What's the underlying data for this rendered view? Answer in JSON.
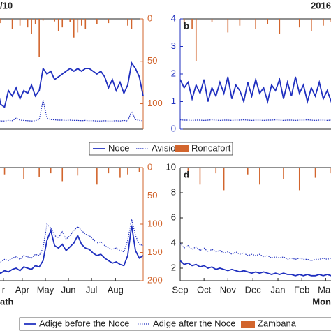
{
  "chart_data": [
    {
      "type": "line",
      "title": "/10",
      "xlim": [
        0,
        39
      ],
      "ylim": [
        0,
        4
      ],
      "y2lim": [
        0,
        130
      ],
      "y2_inverted": true,
      "y2ticks": [
        0,
        50,
        100
      ],
      "y2_color": "#d2652d",
      "series": [
        {
          "name": "Noce",
          "color": "#1f2fbf",
          "line_style": "solid",
          "values": [
            1.9,
            1.6,
            0.9,
            0.8,
            1.4,
            1.2,
            1.5,
            1.1,
            1.4,
            1.3,
            1.6,
            1.2,
            1.4,
            2.2,
            2.0,
            2.1,
            1.8,
            1.9,
            2.0,
            2.1,
            2.2,
            2.1,
            2.2,
            2.1,
            2.2,
            2.2,
            2.1,
            2.0,
            2.1,
            1.9,
            1.5,
            1.8,
            1.4,
            1.7,
            1.3,
            1.6,
            2.4,
            2.2,
            1.9,
            1.2
          ]
        },
        {
          "name": "Avisio",
          "color": "#1f2fbf",
          "line_style": "dotted",
          "values": [
            0.33,
            0.32,
            0.3,
            0.3,
            0.32,
            0.31,
            0.4,
            0.33,
            0.32,
            0.31,
            0.3,
            0.31,
            0.35,
            1.05,
            0.4,
            0.35,
            0.34,
            0.33,
            0.33,
            0.32,
            0.33,
            0.32,
            0.32,
            0.31,
            0.32,
            0.31,
            0.31,
            0.3,
            0.3,
            0.31,
            0.3,
            0.3,
            0.31,
            0.3,
            0.32,
            0.3,
            0.65,
            0.35,
            0.32,
            0.31
          ]
        },
        {
          "name": "Roncafort",
          "color": "#d2652d",
          "type": "bar",
          "axis": "y2",
          "values": [
            0,
            0,
            5,
            0,
            0,
            12,
            0,
            8,
            0,
            10,
            18,
            6,
            45,
            2,
            0,
            0,
            3,
            14,
            10,
            0,
            4,
            22,
            16,
            8,
            12,
            0,
            0,
            6,
            0,
            0,
            5,
            0,
            0,
            0,
            0,
            8,
            12,
            0,
            0,
            0
          ]
        }
      ]
    },
    {
      "type": "line",
      "title": "2016",
      "panel_label": "b",
      "xlim": [
        0,
        39
      ],
      "ylim": [
        0,
        4
      ],
      "yticks": [
        0,
        1,
        2,
        3,
        4
      ],
      "y_color": "#1f2fbf",
      "y2lim": [
        0,
        130
      ],
      "y2_inverted": true,
      "series": [
        {
          "name": "Noce",
          "color": "#1f2fbf",
          "line_style": "solid",
          "values": [
            1.8,
            1.5,
            1.7,
            1.1,
            1.6,
            1.3,
            1.8,
            1.0,
            1.5,
            1.2,
            1.7,
            1.3,
            1.9,
            1.1,
            1.6,
            1.4,
            1.0,
            1.7,
            1.2,
            1.8,
            1.3,
            1.5,
            1.0,
            1.6,
            1.4,
            1.8,
            1.1,
            1.7,
            1.2,
            1.9,
            1.3,
            1.6,
            1.0,
            1.5,
            1.2,
            1.7,
            1.1,
            1.4,
            1.0,
            1.3
          ]
        },
        {
          "name": "Avisio",
          "color": "#1f2fbf",
          "line_style": "dotted",
          "values": [
            0.34,
            0.33,
            0.33,
            0.32,
            0.33,
            0.33,
            0.32,
            0.33,
            0.34,
            0.33,
            0.32,
            0.33,
            0.33,
            0.32,
            0.33,
            0.33,
            0.34,
            0.33,
            0.32,
            0.33,
            0.33,
            0.32,
            0.33,
            0.33,
            0.34,
            0.33,
            0.32,
            0.33,
            0.33,
            0.32,
            0.33,
            0.33,
            0.34,
            0.33,
            0.32,
            0.33,
            0.33,
            0.32,
            0.33,
            0.33
          ]
        },
        {
          "name": "Roncafort",
          "color": "#d2652d",
          "type": "bar",
          "axis": "y2",
          "values": [
            0,
            6,
            0,
            12,
            50,
            0,
            0,
            0,
            4,
            0,
            0,
            0,
            16,
            0,
            0,
            8,
            0,
            0,
            0,
            12,
            0,
            0,
            6,
            0,
            0,
            18,
            0,
            0,
            0,
            0,
            10,
            0,
            0,
            14,
            0,
            0,
            8,
            0,
            4,
            0
          ]
        }
      ]
    },
    {
      "type": "line",
      "x_label": "ath",
      "xlim": [
        0,
        39
      ],
      "ylim": [
        1,
        10
      ],
      "y2lim": [
        0,
        200
      ],
      "y2_inverted": true,
      "y2ticks": [
        0,
        50,
        100,
        150,
        200
      ],
      "y2_color": "#d2652d",
      "xticks": [
        {
          "value": 2.7,
          "label": "r"
        },
        {
          "value": 7.6,
          "label": "Apr"
        },
        {
          "value": 13.6,
          "label": "May"
        },
        {
          "value": 19.6,
          "label": "Jun"
        },
        {
          "value": 25.6,
          "label": "Jul"
        },
        {
          "value": 31.8,
          "label": "Aug"
        }
      ],
      "series": [
        {
          "name": "Adige before the Noce",
          "color": "#1f2fbf",
          "line_style": "solid",
          "values": [
            1.5,
            1.7,
            1.6,
            1.8,
            1.7,
            1.9,
            2.0,
            1.8,
            2.1,
            2.0,
            1.9,
            2.2,
            2.1,
            2.6,
            4.2,
            5.0,
            3.8,
            3.6,
            3.9,
            3.4,
            3.7,
            4.0,
            4.6,
            3.9,
            3.6,
            3.5,
            3.2,
            3.0,
            3.1,
            2.8,
            2.6,
            2.4,
            2.5,
            2.3,
            2.2,
            3.0,
            5.4,
            3.4,
            2.8,
            3.0
          ]
        },
        {
          "name": "Adige after the Noce",
          "color": "#1f2fbf",
          "line_style": "dotted",
          "values": [
            2.4,
            2.6,
            2.5,
            2.7,
            2.6,
            2.8,
            2.9,
            2.7,
            3.0,
            2.9,
            2.8,
            3.1,
            3.0,
            3.6,
            5.5,
            5.2,
            4.6,
            4.4,
            4.9,
            4.3,
            4.6,
            5.0,
            5.3,
            5.0,
            4.7,
            4.6,
            4.3,
            4.0,
            4.1,
            3.8,
            3.6,
            3.5,
            3.6,
            3.4,
            3.3,
            4.2,
            5.9,
            4.6,
            3.9,
            3.8
          ]
        },
        {
          "name": "Zambana",
          "color": "#d2652d",
          "type": "bar",
          "axis": "y2",
          "values": [
            0,
            0,
            0,
            12,
            0,
            0,
            0,
            0,
            20,
            0,
            0,
            0,
            16,
            0,
            0,
            10,
            0,
            0,
            24,
            0,
            0,
            0,
            14,
            0,
            0,
            0,
            0,
            30,
            0,
            0,
            10,
            0,
            0,
            18,
            0,
            12,
            0,
            0,
            8,
            0
          ]
        }
      ]
    },
    {
      "type": "line",
      "panel_label": "d",
      "x_label": "Mon",
      "xlim": [
        0,
        39
      ],
      "ylim": [
        1,
        10
      ],
      "yticks": [
        2,
        4,
        6,
        8,
        10
      ],
      "y_color": "#222222",
      "y2lim": [
        0,
        200
      ],
      "y2_inverted": true,
      "xticks": [
        {
          "value": 0,
          "label": "Sep"
        },
        {
          "value": 6.0,
          "label": "Oct"
        },
        {
          "value": 12.0,
          "label": "Nov"
        },
        {
          "value": 18.3,
          "label": "Dec"
        },
        {
          "value": 24.6,
          "label": "Jan"
        },
        {
          "value": 30.6,
          "label": "Feb"
        },
        {
          "value": 36.6,
          "label": "Mar"
        }
      ],
      "series": [
        {
          "name": "Adige before the Noce",
          "color": "#1f2fbf",
          "line_style": "solid",
          "values": [
            2.6,
            2.3,
            2.4,
            2.2,
            2.3,
            2.1,
            2.2,
            2.0,
            2.1,
            1.9,
            2.0,
            1.9,
            1.8,
            1.9,
            1.8,
            1.7,
            1.8,
            1.7,
            1.6,
            1.7,
            1.6,
            1.7,
            1.6,
            1.5,
            1.6,
            1.5,
            1.6,
            1.5,
            1.5,
            1.4,
            1.5,
            1.4,
            1.5,
            1.4,
            1.4,
            1.5,
            1.4,
            1.5,
            1.4,
            1.5
          ]
        },
        {
          "name": "Adige after the Noce",
          "color": "#1f2fbf",
          "line_style": "dotted",
          "values": [
            4.0,
            3.6,
            3.8,
            3.5,
            3.7,
            3.4,
            3.6,
            3.3,
            3.5,
            3.3,
            3.4,
            3.2,
            3.3,
            3.1,
            3.3,
            3.1,
            3.2,
            3.0,
            3.1,
            3.0,
            3.1,
            2.9,
            3.0,
            2.8,
            2.9,
            2.8,
            2.9,
            2.7,
            2.8,
            2.7,
            2.8,
            2.7,
            2.7,
            2.6,
            2.7,
            2.7,
            2.8,
            2.7,
            2.8,
            2.9
          ]
        },
        {
          "name": "Zambana",
          "color": "#d2652d",
          "type": "bar",
          "axis": "y2",
          "values": [
            0,
            0,
            18,
            0,
            0,
            30,
            0,
            0,
            0,
            10,
            0,
            40,
            0,
            0,
            0,
            0,
            0,
            12,
            0,
            0,
            30,
            0,
            0,
            0,
            0,
            0,
            20,
            0,
            0,
            0,
            40,
            0,
            0,
            0,
            18,
            0,
            0,
            0,
            10,
            0
          ]
        }
      ]
    }
  ]
}
